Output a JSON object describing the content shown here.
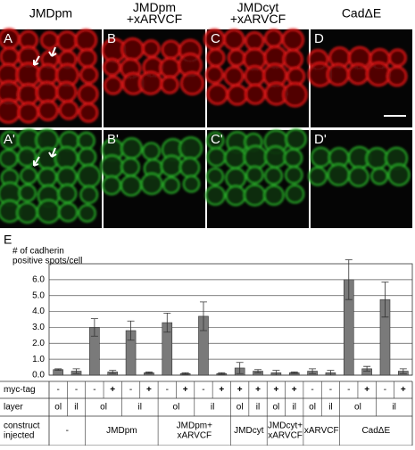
{
  "image_panels": {
    "columns": [
      [
        "JMDpm"
      ],
      [
        "JMDpm",
        "+xARVCF"
      ],
      [
        "JMDcyt",
        "+xARVCF"
      ],
      [
        "CadΔE"
      ]
    ],
    "rows": [
      [
        "A",
        "B",
        "C",
        "D"
      ],
      [
        "A'",
        "B'",
        "C'",
        "D'"
      ]
    ]
  },
  "chart_data": {
    "type": "bar",
    "panel_label": "E",
    "y_label": [
      "# of cadherin",
      "positive spots/cell"
    ],
    "values": [
      0.35,
      0.25,
      3.0,
      0.2,
      2.8,
      0.15,
      3.3,
      0.1,
      3.7,
      0.1,
      0.45,
      0.25,
      0.15,
      0.15,
      0.25,
      0.15,
      6.0,
      0.4,
      4.75,
      0.25
    ],
    "errors": [
      0.05,
      0.15,
      0.55,
      0.1,
      0.6,
      0.05,
      0.6,
      0.05,
      0.9,
      0.05,
      0.35,
      0.1,
      0.15,
      0.05,
      0.15,
      0.15,
      1.25,
      0.15,
      1.1,
      0.15
    ],
    "color": "#7a7a7a",
    "ylim": [
      0,
      7
    ],
    "yticks": [
      {
        "value": 0,
        "label": "0.0"
      },
      {
        "value": 1,
        "label": "1.0"
      },
      {
        "value": 2,
        "label": "2.0"
      },
      {
        "value": 3,
        "label": "3.0"
      },
      {
        "value": 4,
        "label": "4.0"
      },
      {
        "value": 5,
        "label": "5.0"
      },
      {
        "value": 6,
        "label": "6.0"
      }
    ],
    "grid": true,
    "rows": [
      {
        "label": [
          "myc-tag"
        ],
        "cells": [
          "-",
          "-",
          "-",
          "+",
          "-",
          "+",
          "-",
          "+",
          "-",
          "+",
          "+",
          "+",
          "+",
          "+",
          "-",
          "-",
          "-",
          "+",
          "-",
          "+"
        ]
      },
      {
        "label": [
          "layer"
        ],
        "cells": [
          "ol",
          "il",
          "ol",
          null,
          "il",
          null,
          "ol",
          null,
          "il",
          null,
          "ol",
          "il",
          "ol",
          "il",
          "ol",
          "il",
          "ol",
          null,
          "il",
          null
        ]
      },
      {
        "label": [
          "construct",
          "injected"
        ],
        "cells": [
          [
            "-"
          ],
          null,
          [
            "JMDpm"
          ],
          null,
          null,
          null,
          [
            "JMDpm+",
            "xARVCF"
          ],
          null,
          null,
          null,
          [
            "JMDcyt"
          ],
          null,
          [
            "JMDcyt+",
            "xARVCF"
          ],
          null,
          [
            "xARVCF"
          ],
          null,
          [
            "CadΔE"
          ],
          null,
          null,
          null
        ]
      }
    ]
  }
}
